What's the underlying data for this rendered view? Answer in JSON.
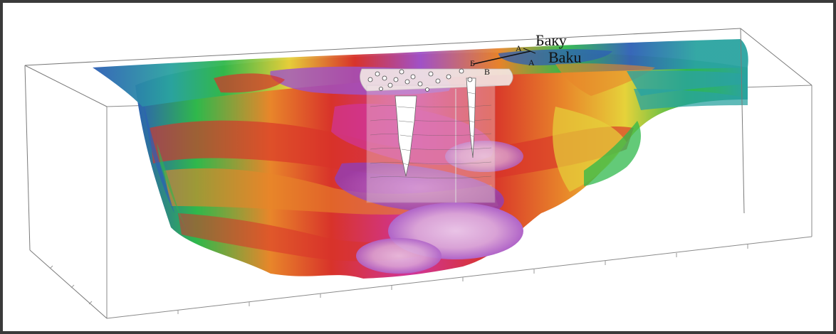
{
  "labels": {
    "baku_ru": "Баку",
    "baku_az": "Baku",
    "point_a_upper": "А",
    "point_a_lower": "A",
    "point_b": "Б",
    "point_v": "В"
  },
  "colors": {
    "box_edge": "#6e6e6e",
    "frame": "#3a3a3a",
    "deep_blue": "#2d5fb5",
    "teal": "#2aa3a0",
    "green": "#2fb84b",
    "yellow": "#e6d23a",
    "orange": "#e8862a",
    "red": "#d8332a",
    "magenta": "#d0359a",
    "violet": "#9e52c9",
    "pink": "#d9a2d6",
    "section_panel": "#f3e9e6"
  }
}
